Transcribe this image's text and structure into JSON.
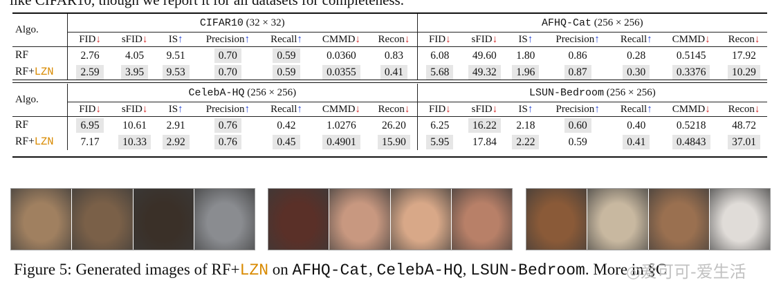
{
  "top_text": "like CIFAR10, though we report it for all datasets for completeness.",
  "table1": {
    "algo_header": "Algo.",
    "datasets": [
      "CIFAR10 (32 × 32)",
      "AFHQ-Cat (256 × 256)"
    ],
    "metrics": [
      {
        "name": "FID",
        "arrow": "↓"
      },
      {
        "name": "sFID",
        "arrow": "↓"
      },
      {
        "name": "IS",
        "arrow": "↑"
      },
      {
        "name": "Precision",
        "arrow": "↑"
      },
      {
        "name": "Recall",
        "arrow": "↑"
      },
      {
        "name": "CMMD",
        "arrow": "↓"
      },
      {
        "name": "Recon",
        "arrow": "↓"
      }
    ],
    "rows": [
      {
        "algo": "RF",
        "suffix": "",
        "values": [
          "2.76",
          "4.05",
          "9.51",
          "0.70",
          "0.59",
          "0.0360",
          "0.83",
          "6.08",
          "49.60",
          "1.80",
          "0.86",
          "0.28",
          "0.5145",
          "17.92"
        ],
        "highlight": [
          false,
          false,
          false,
          true,
          true,
          false,
          false,
          false,
          false,
          false,
          false,
          false,
          false,
          false
        ]
      },
      {
        "algo": "RF+",
        "suffix": "LZN",
        "values": [
          "2.59",
          "3.95",
          "9.53",
          "0.70",
          "0.59",
          "0.0355",
          "0.41",
          "5.68",
          "49.32",
          "1.96",
          "0.87",
          "0.30",
          "0.3376",
          "10.29"
        ],
        "highlight": [
          true,
          true,
          true,
          true,
          true,
          true,
          true,
          true,
          true,
          true,
          true,
          true,
          true,
          true
        ]
      }
    ]
  },
  "table2": {
    "algo_header": "Algo.",
    "datasets": [
      "CelebA-HQ (256 × 256)",
      "LSUN-Bedroom (256 × 256)"
    ],
    "metrics": [
      {
        "name": "FID",
        "arrow": "↓"
      },
      {
        "name": "sFID",
        "arrow": "↓"
      },
      {
        "name": "IS",
        "arrow": "↑"
      },
      {
        "name": "Precision",
        "arrow": "↑"
      },
      {
        "name": "Recall",
        "arrow": "↑"
      },
      {
        "name": "CMMD",
        "arrow": "↓"
      },
      {
        "name": "Recon",
        "arrow": "↓"
      }
    ],
    "rows": [
      {
        "algo": "RF",
        "suffix": "",
        "values": [
          "6.95",
          "10.61",
          "2.91",
          "0.76",
          "0.42",
          "1.0276",
          "26.20",
          "6.25",
          "16.22",
          "2.18",
          "0.60",
          "0.40",
          "0.5218",
          "48.72"
        ],
        "highlight": [
          true,
          false,
          false,
          true,
          false,
          false,
          false,
          false,
          true,
          false,
          true,
          false,
          false,
          false
        ]
      },
      {
        "algo": "RF+",
        "suffix": "LZN",
        "values": [
          "7.17",
          "10.33",
          "2.92",
          "0.76",
          "0.45",
          "0.4901",
          "15.90",
          "5.95",
          "17.84",
          "2.22",
          "0.59",
          "0.41",
          "0.4843",
          "37.01"
        ],
        "highlight": [
          false,
          true,
          true,
          true,
          true,
          true,
          true,
          true,
          false,
          true,
          false,
          true,
          true,
          true
        ]
      }
    ]
  },
  "image_groups": [
    {
      "name": "cats",
      "colors": [
        "#a08060",
        "#7a6048",
        "#3a3028",
        "#8a8c90"
      ]
    },
    {
      "name": "faces",
      "colors": [
        "#5a3028",
        "#c89880",
        "#d8a888",
        "#b88068"
      ]
    },
    {
      "name": "bedrooms",
      "colors": [
        "#8a5a38",
        "#c8b8a0",
        "#9a7050",
        "#e0dcd8"
      ]
    }
  ],
  "caption": {
    "prefix": "Figure 5: Generated images of RF+",
    "lzn": "LZN",
    "on": " on ",
    "d1": "AFHQ-Cat",
    "comma1": ", ",
    "d2": "CelebA-HQ",
    "comma2": ", ",
    "d3": "LSUN-Bedroom",
    "suffix": ". More in §C"
  },
  "watermark": "◎爱可可-爱生活"
}
